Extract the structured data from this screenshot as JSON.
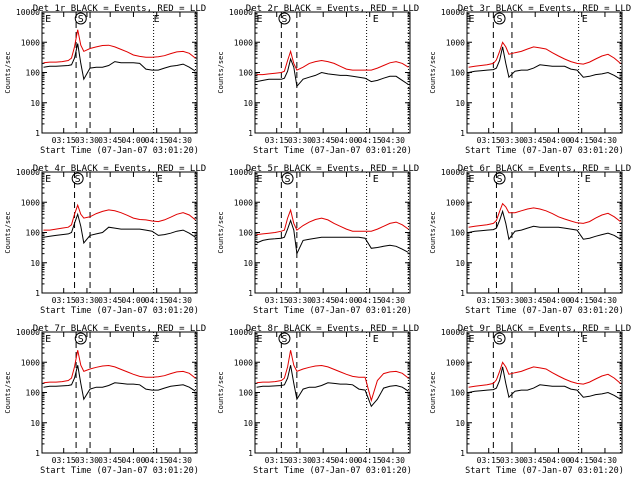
{
  "figure": {
    "y_label": "Counts/sec",
    "x_label": "Start Time (07-Jan-07 03:01:20)",
    "x_ticks": [
      "03:15",
      "03:30",
      "03:45",
      "04:00",
      "04:15",
      "04:30"
    ],
    "y_ticks": [
      "1",
      "10",
      "100",
      "1000",
      "10000"
    ],
    "series_colors": {
      "events": "#000000",
      "lld": "#e00000"
    },
    "markers": {
      "eclipse_start": "E",
      "saa": "S",
      "eclipse_end": "E"
    }
  },
  "chart_data": [
    {
      "type": "line",
      "title": "Det 1r BLACK = Events, RED = LLD",
      "xlabel": "Start Time (07-Jan-07 03:01:20)",
      "ylabel": "Counts/sec",
      "xlim": [
        "03:01",
        "04:41"
      ],
      "ylim": [
        1,
        10000
      ],
      "yscale": "log",
      "x": [
        "03:02",
        "03:06",
        "03:10",
        "03:14",
        "03:18",
        "03:20",
        "03:22",
        "03:24",
        "03:26",
        "03:28",
        "03:32",
        "03:36",
        "03:40",
        "03:44",
        "03:48",
        "03:52",
        "03:56",
        "04:00",
        "04:04",
        "04:08",
        "04:12",
        "04:16",
        "04:20",
        "04:24",
        "04:28",
        "04:32",
        "04:36",
        "04:40"
      ],
      "series": [
        {
          "name": "Events",
          "values": [
            150,
            160,
            160,
            165,
            170,
            180,
            300,
            900,
            200,
            60,
            140,
            150,
            150,
            170,
            230,
            210,
            210,
            210,
            200,
            130,
            120,
            120,
            140,
            160,
            170,
            190,
            150,
            110
          ]
        },
        {
          "name": "LLD",
          "values": [
            210,
            220,
            220,
            230,
            250,
            300,
            700,
            2600,
            800,
            500,
            620,
            700,
            780,
            800,
            700,
            580,
            480,
            380,
            340,
            320,
            320,
            330,
            360,
            420,
            480,
            500,
            430,
            300
          ]
        }
      ],
      "markers_x": {
        "E": "03:03",
        "S": "03:26",
        "E_end": "04:13"
      },
      "dashed_x": [
        "03:23",
        "03:32"
      ],
      "dotted_x": [
        "04:13",
        "04:40"
      ]
    },
    {
      "type": "line",
      "title": "Det 2r BLACK = Events, RED = LLD",
      "xlabel": "Start Time (07-Jan-07 03:01:20)",
      "ylabel": "Counts/sec",
      "xlim": [
        "03:01",
        "04:41"
      ],
      "ylim": [
        1,
        10000
      ],
      "yscale": "log",
      "x": [
        "03:02",
        "03:06",
        "03:10",
        "03:14",
        "03:18",
        "03:20",
        "03:22",
        "03:24",
        "03:26",
        "03:28",
        "03:32",
        "03:36",
        "03:40",
        "03:44",
        "03:48",
        "03:52",
        "03:56",
        "04:00",
        "04:04",
        "04:08",
        "04:12",
        "04:16",
        "04:20",
        "04:24",
        "04:28",
        "04:32",
        "04:36",
        "04:40"
      ],
      "series": [
        {
          "name": "Events",
          "values": [
            50,
            55,
            60,
            60,
            60,
            65,
            110,
            280,
            150,
            35,
            60,
            70,
            80,
            100,
            90,
            85,
            80,
            80,
            75,
            70,
            65,
            50,
            55,
            65,
            75,
            75,
            55,
            40
          ]
        },
        {
          "name": "LLD",
          "values": [
            85,
            85,
            90,
            95,
            100,
            110,
            250,
            500,
            200,
            120,
            150,
            200,
            230,
            250,
            230,
            200,
            160,
            130,
            120,
            120,
            120,
            120,
            140,
            170,
            210,
            230,
            200,
            150
          ]
        }
      ],
      "markers_x": {
        "E": "03:02",
        "S": "03:20",
        "E_end": "04:17"
      },
      "dashed_x": [
        "03:18",
        "03:28"
      ],
      "dotted_x": [
        "04:13",
        "04:40"
      ]
    },
    {
      "type": "line",
      "title": "Det 3r BLACK = Events, RED = LLD",
      "xlabel": "Start Time (07-Jan-07 03:01:20)",
      "ylabel": "Counts/sec",
      "xlim": [
        "03:01",
        "04:41"
      ],
      "ylim": [
        1,
        10000
      ],
      "yscale": "log",
      "x": [
        "03:02",
        "03:06",
        "03:10",
        "03:14",
        "03:18",
        "03:20",
        "03:22",
        "03:24",
        "03:26",
        "03:28",
        "03:32",
        "03:36",
        "03:40",
        "03:44",
        "03:48",
        "03:52",
        "03:56",
        "04:00",
        "04:04",
        "04:08",
        "04:12",
        "04:16",
        "04:20",
        "04:24",
        "04:28",
        "04:32",
        "04:36",
        "04:40"
      ],
      "series": [
        {
          "name": "Events",
          "values": [
            100,
            110,
            115,
            120,
            125,
            140,
            250,
            700,
            200,
            70,
            110,
            120,
            120,
            140,
            180,
            170,
            160,
            160,
            160,
            130,
            120,
            70,
            75,
            85,
            90,
            100,
            80,
            60
          ]
        },
        {
          "name": "LLD",
          "values": [
            150,
            160,
            170,
            180,
            200,
            260,
            500,
            1000,
            700,
            400,
            450,
            500,
            600,
            700,
            650,
            600,
            450,
            350,
            280,
            230,
            200,
            190,
            220,
            280,
            350,
            400,
            300,
            200
          ]
        }
      ],
      "markers_x": {
        "E": "03:02",
        "S": "03:22",
        "E_end": "04:15"
      },
      "dashed_x": [
        "03:18",
        "03:30"
      ],
      "dotted_x": [
        "04:13",
        "04:40"
      ]
    },
    {
      "type": "line",
      "title": "Det 4r BLACK = Events, RED = LLD",
      "xlabel": "Start Time (07-Jan-07 03:01:20)",
      "ylabel": "Counts/sec",
      "xlim": [
        "03:01",
        "04:41"
      ],
      "ylim": [
        1,
        10000
      ],
      "yscale": "log",
      "x": [
        "03:02",
        "03:06",
        "03:10",
        "03:14",
        "03:18",
        "03:20",
        "03:22",
        "03:24",
        "03:26",
        "03:28",
        "03:32",
        "03:36",
        "03:40",
        "03:44",
        "03:48",
        "03:52",
        "03:56",
        "04:00",
        "04:04",
        "04:08",
        "04:12",
        "04:16",
        "04:20",
        "04:24",
        "04:28",
        "04:32",
        "04:36",
        "04:40"
      ],
      "series": [
        {
          "name": "Events",
          "values": [
            70,
            75,
            80,
            85,
            90,
            100,
            200,
            400,
            160,
            45,
            80,
            90,
            100,
            150,
            140,
            130,
            130,
            130,
            130,
            120,
            110,
            80,
            85,
            95,
            110,
            120,
            95,
            70
          ]
        },
        {
          "name": "LLD",
          "values": [
            120,
            120,
            130,
            140,
            150,
            180,
            400,
            800,
            400,
            300,
            330,
            420,
            500,
            560,
            520,
            450,
            370,
            300,
            270,
            260,
            240,
            230,
            260,
            320,
            400,
            450,
            380,
            260
          ]
        }
      ],
      "markers_x": {
        "E": "03:03",
        "S": "03:24",
        "E_end": "04:15"
      },
      "dashed_x": [
        "03:22",
        "03:32"
      ],
      "dotted_x": [
        "04:13",
        "04:40"
      ]
    },
    {
      "type": "line",
      "title": "Det 5r BLACK = Events, RED = LLD",
      "xlabel": "Start Time (07-Jan-07 03:01:20)",
      "ylabel": "Counts/sec",
      "xlim": [
        "03:01",
        "04:41"
      ],
      "ylim": [
        1,
        10000
      ],
      "yscale": "log",
      "x": [
        "03:02",
        "03:06",
        "03:10",
        "03:14",
        "03:18",
        "03:20",
        "03:22",
        "03:24",
        "03:26",
        "03:28",
        "03:32",
        "03:36",
        "03:40",
        "03:44",
        "03:48",
        "03:52",
        "03:56",
        "04:00",
        "04:04",
        "04:08",
        "04:12",
        "04:16",
        "04:20",
        "04:24",
        "04:28",
        "04:32",
        "04:36",
        "04:40"
      ],
      "series": [
        {
          "name": "Events",
          "values": [
            45,
            55,
            60,
            62,
            65,
            70,
            130,
            250,
            120,
            20,
            55,
            60,
            65,
            70,
            70,
            70,
            70,
            70,
            70,
            70,
            65,
            30,
            32,
            35,
            38,
            35,
            28,
            22
          ]
        },
        {
          "name": "LLD",
          "values": [
            85,
            90,
            95,
            100,
            110,
            120,
            300,
            550,
            200,
            120,
            170,
            220,
            270,
            300,
            260,
            200,
            160,
            130,
            110,
            110,
            110,
            110,
            130,
            160,
            200,
            220,
            180,
            130
          ]
        }
      ],
      "markers_x": {
        "E": "03:02",
        "S": "03:22",
        "E_end": "04:17"
      },
      "dashed_x": [
        "03:18",
        "03:28"
      ],
      "dotted_x": [
        "04:13",
        "04:40"
      ]
    },
    {
      "type": "line",
      "title": "Det 6r BLACK = Events, RED = LLD",
      "xlabel": "Start Time (07-Jan-07 03:01:20)",
      "ylabel": "Counts/sec",
      "xlim": [
        "03:01",
        "04:41"
      ],
      "ylim": [
        1,
        10000
      ],
      "yscale": "log",
      "x": [
        "03:02",
        "03:06",
        "03:10",
        "03:14",
        "03:18",
        "03:20",
        "03:22",
        "03:24",
        "03:26",
        "03:28",
        "03:32",
        "03:36",
        "03:40",
        "03:44",
        "03:48",
        "03:52",
        "03:56",
        "04:00",
        "04:04",
        "04:08",
        "04:12",
        "04:16",
        "04:20",
        "04:24",
        "04:28",
        "04:32",
        "04:36",
        "04:40"
      ],
      "series": [
        {
          "name": "Events",
          "values": [
            100,
            110,
            115,
            120,
            125,
            140,
            250,
            500,
            200,
            60,
            110,
            120,
            140,
            160,
            150,
            150,
            150,
            150,
            140,
            130,
            120,
            60,
            65,
            75,
            85,
            95,
            80,
            60
          ]
        },
        {
          "name": "LLD",
          "values": [
            150,
            160,
            170,
            180,
            200,
            250,
            500,
            900,
            700,
            450,
            450,
            520,
            600,
            650,
            600,
            520,
            420,
            330,
            280,
            240,
            210,
            200,
            230,
            300,
            380,
            430,
            330,
            230
          ]
        }
      ],
      "markers_x": {
        "E": "03:02",
        "S": "03:22",
        "E_end": "04:17"
      },
      "dashed_x": [
        "03:20",
        "03:30"
      ],
      "dotted_x": [
        "04:13",
        "04:40"
      ]
    },
    {
      "type": "line",
      "title": "Det 7r BLACK = Events, RED = LLD",
      "xlabel": "Start Time (07-Jan-07 03:01:20)",
      "ylabel": "Counts/sec",
      "xlim": [
        "03:01",
        "04:41"
      ],
      "ylim": [
        1,
        10000
      ],
      "yscale": "log",
      "x": [
        "03:02",
        "03:06",
        "03:10",
        "03:14",
        "03:18",
        "03:20",
        "03:22",
        "03:24",
        "03:26",
        "03:28",
        "03:32",
        "03:36",
        "03:40",
        "03:44",
        "03:48",
        "03:52",
        "03:56",
        "04:00",
        "04:04",
        "04:08",
        "04:12",
        "04:16",
        "04:20",
        "04:24",
        "04:28",
        "04:32",
        "04:36",
        "04:40"
      ],
      "series": [
        {
          "name": "Events",
          "values": [
            150,
            160,
            160,
            165,
            170,
            180,
            300,
            800,
            200,
            60,
            130,
            150,
            150,
            170,
            210,
            200,
            190,
            190,
            180,
            130,
            120,
            120,
            140,
            160,
            170,
            180,
            150,
            110
          ]
        },
        {
          "name": "LLD",
          "values": [
            210,
            220,
            220,
            230,
            250,
            300,
            700,
            2500,
            800,
            500,
            600,
            680,
            750,
            780,
            700,
            580,
            480,
            400,
            340,
            320,
            320,
            330,
            360,
            420,
            480,
            500,
            430,
            300
          ]
        }
      ],
      "markers_x": {
        "E": "03:03",
        "S": "03:26",
        "E_end": "04:13"
      },
      "dashed_x": [
        "03:23",
        "03:32"
      ],
      "dotted_x": [
        "04:13",
        "04:40"
      ]
    },
    {
      "type": "line",
      "title": "Det 8r BLACK = Events, RED = LLD",
      "xlabel": "Start Time (07-Jan-07 03:01:20)",
      "ylabel": "Counts/sec",
      "xlim": [
        "03:01",
        "04:41"
      ],
      "ylim": [
        1,
        10000
      ],
      "yscale": "log",
      "x": [
        "03:02",
        "03:06",
        "03:10",
        "03:14",
        "03:18",
        "03:20",
        "03:22",
        "03:24",
        "03:26",
        "03:28",
        "03:32",
        "03:36",
        "03:40",
        "03:44",
        "03:48",
        "03:52",
        "03:56",
        "04:00",
        "04:04",
        "04:08",
        "04:12",
        "04:16",
        "04:20",
        "04:24",
        "04:28",
        "04:32",
        "04:36",
        "04:40"
      ],
      "series": [
        {
          "name": "Events",
          "values": [
            150,
            160,
            160,
            165,
            170,
            180,
            300,
            800,
            200,
            60,
            130,
            150,
            150,
            170,
            210,
            200,
            190,
            190,
            180,
            130,
            120,
            35,
            60,
            140,
            160,
            170,
            150,
            110
          ]
        },
        {
          "name": "LLD",
          "values": [
            210,
            220,
            220,
            230,
            250,
            300,
            700,
            2500,
            800,
            500,
            600,
            680,
            750,
            780,
            700,
            580,
            480,
            400,
            340,
            320,
            320,
            55,
            250,
            420,
            480,
            500,
            430,
            300
          ]
        }
      ],
      "markers_x": {
        "E": "03:02",
        "S": "03:20",
        "E_end": "04:17"
      },
      "dashed_x": [
        "03:18",
        "03:28"
      ],
      "dotted_x": [
        "04:13",
        "04:40"
      ]
    },
    {
      "type": "line",
      "title": "Det 9r BLACK = Events, RED = LLD",
      "xlabel": "Start Time (07-Jan-07 03:01:20)",
      "ylabel": "Counts/sec",
      "xlim": [
        "03:01",
        "04:41"
      ],
      "ylim": [
        1,
        10000
      ],
      "yscale": "log",
      "x": [
        "03:02",
        "03:06",
        "03:10",
        "03:14",
        "03:18",
        "03:20",
        "03:22",
        "03:24",
        "03:26",
        "03:28",
        "03:32",
        "03:36",
        "03:40",
        "03:44",
        "03:48",
        "03:52",
        "03:56",
        "04:00",
        "04:04",
        "04:08",
        "04:12",
        "04:16",
        "04:20",
        "04:24",
        "04:28",
        "04:32",
        "04:36",
        "04:40"
      ],
      "series": [
        {
          "name": "Events",
          "values": [
            100,
            110,
            115,
            120,
            125,
            140,
            250,
            700,
            200,
            70,
            110,
            120,
            120,
            140,
            180,
            170,
            160,
            160,
            160,
            130,
            120,
            70,
            75,
            85,
            90,
            100,
            80,
            60
          ]
        },
        {
          "name": "LLD",
          "values": [
            150,
            160,
            170,
            180,
            200,
            260,
            500,
            1000,
            700,
            400,
            450,
            500,
            600,
            700,
            650,
            600,
            450,
            350,
            280,
            230,
            200,
            190,
            220,
            280,
            350,
            400,
            300,
            200
          ]
        }
      ],
      "markers_x": {
        "E": "03:02",
        "S": "03:22",
        "E_end": "04:15"
      },
      "dashed_x": [
        "03:18",
        "03:30"
      ],
      "dotted_x": [
        "04:13",
        "04:40"
      ]
    }
  ]
}
